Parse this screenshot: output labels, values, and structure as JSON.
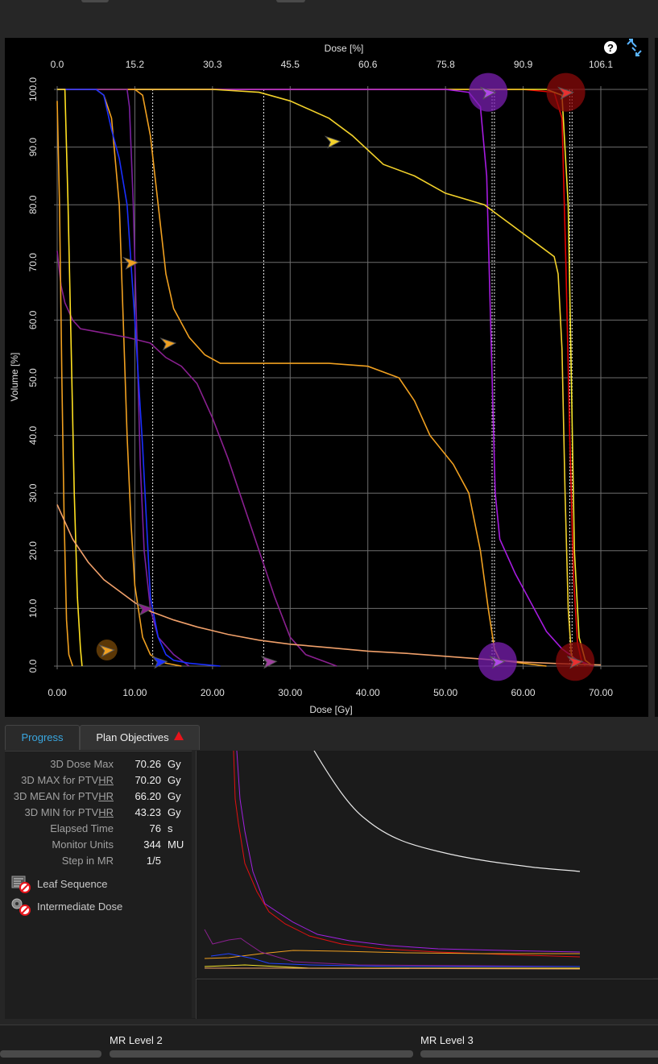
{
  "dvh": {
    "top_axis_title": "Dose [%]",
    "bottom_axis_title": "Dose [Gy]",
    "left_axis_title": "Volume [%]",
    "help_icon": "help-icon",
    "expand_icon": "expand-icon"
  },
  "chart_data": {
    "type": "line",
    "xlabel": "Dose [Gy]",
    "x2label": "Dose [%]",
    "ylabel": "Volume [%]",
    "xlim": [
      0,
      70
    ],
    "ylim": [
      0,
      100
    ],
    "x_ticks": [
      "0.00",
      "10.00",
      "20.00",
      "30.00",
      "40.00",
      "50.00",
      "60.00",
      "70.00"
    ],
    "x2_ticks": [
      "0.0",
      "15.2",
      "30.3",
      "45.5",
      "60.6",
      "75.8",
      "90.9",
      "106.1"
    ],
    "y_ticks": [
      "0.0",
      "10.0",
      "20.0",
      "30.0",
      "40.0",
      "50.0",
      "60.0",
      "70.0",
      "80.0",
      "90.0",
      "100.0"
    ],
    "grid": true,
    "series": [
      {
        "color": "#e60000",
        "values": [
          [
            0,
            100
          ],
          [
            60,
            100
          ],
          [
            64,
            99.5
          ],
          [
            65,
            95
          ],
          [
            65.5,
            70
          ],
          [
            66,
            40
          ],
          [
            66.5,
            15
          ],
          [
            67,
            4
          ],
          [
            67.5,
            1
          ],
          [
            68,
            0
          ]
        ]
      },
      {
        "color": "#f5e52a",
        "values": [
          [
            0,
            100
          ],
          [
            63,
            100
          ],
          [
            65,
            99
          ],
          [
            65.8,
            80
          ],
          [
            66.2,
            50
          ],
          [
            66.6,
            20
          ],
          [
            67.2,
            5
          ],
          [
            68,
            1
          ],
          [
            69,
            0
          ]
        ]
      },
      {
        "color": "#a61be0",
        "values": [
          [
            0,
            100
          ],
          [
            50,
            100
          ],
          [
            53,
            99.5
          ],
          [
            54.5,
            97
          ],
          [
            55.3,
            85
          ],
          [
            55.8,
            60
          ],
          [
            56.4,
            30
          ],
          [
            57,
            22
          ],
          [
            59,
            16
          ],
          [
            61,
            11
          ],
          [
            63,
            6
          ],
          [
            65,
            3
          ],
          [
            67,
            1
          ],
          [
            69,
            0
          ]
        ]
      },
      {
        "color": "#f2d12a",
        "values": [
          [
            0,
            100
          ],
          [
            20,
            100
          ],
          [
            26,
            99.5
          ],
          [
            30,
            98
          ],
          [
            35,
            95
          ],
          [
            38,
            92
          ],
          [
            42,
            87
          ],
          [
            46,
            85
          ],
          [
            50,
            82
          ],
          [
            55,
            80
          ],
          [
            57,
            78
          ],
          [
            60,
            75
          ],
          [
            62,
            73
          ],
          [
            64,
            71
          ],
          [
            64.5,
            68
          ],
          [
            65,
            55
          ],
          [
            65.4,
            30
          ],
          [
            65.8,
            10
          ],
          [
            66.2,
            2
          ],
          [
            67,
            0
          ]
        ]
      },
      {
        "color": "#f0a020",
        "values": [
          [
            0,
            100
          ],
          [
            10,
            100
          ],
          [
            11,
            99
          ],
          [
            12,
            92
          ],
          [
            13,
            80
          ],
          [
            14,
            68
          ],
          [
            15,
            62
          ],
          [
            17,
            57
          ],
          [
            19,
            54
          ],
          [
            21,
            52.5
          ],
          [
            25,
            52.5
          ],
          [
            35,
            52.5
          ],
          [
            40,
            52
          ],
          [
            44,
            50
          ],
          [
            46,
            46
          ],
          [
            48,
            40
          ],
          [
            51,
            35
          ],
          [
            53,
            30
          ],
          [
            54.5,
            20
          ],
          [
            55.5,
            10
          ],
          [
            56.3,
            3
          ],
          [
            57,
            1
          ],
          [
            60,
            0.5
          ],
          [
            63,
            0
          ]
        ]
      },
      {
        "color": "#f0a020",
        "values": [
          [
            0,
            100
          ],
          [
            5,
            100
          ],
          [
            6,
            99
          ],
          [
            7,
            95
          ],
          [
            8,
            80
          ],
          [
            8.5,
            60
          ],
          [
            9,
            40
          ],
          [
            9.5,
            25
          ],
          [
            10,
            14
          ],
          [
            11,
            5
          ],
          [
            12,
            2
          ],
          [
            13,
            1
          ],
          [
            14,
            0.5
          ],
          [
            16,
            0
          ]
        ]
      },
      {
        "color": "#8a2090",
        "values": [
          [
            0,
            72
          ],
          [
            0.5,
            66
          ],
          [
            1,
            63
          ],
          [
            2,
            60
          ],
          [
            3,
            58.5
          ],
          [
            5,
            58
          ],
          [
            7,
            57.5
          ],
          [
            9,
            57
          ],
          [
            12,
            56
          ],
          [
            14,
            53.5
          ],
          [
            16,
            52
          ],
          [
            18,
            49
          ],
          [
            20,
            43
          ],
          [
            22,
            36
          ],
          [
            24,
            28
          ],
          [
            26,
            20
          ],
          [
            28,
            12
          ],
          [
            30,
            5
          ],
          [
            32,
            2
          ],
          [
            35,
            0.5
          ],
          [
            36,
            0
          ]
        ]
      },
      {
        "color": "#7a20a0",
        "values": [
          [
            0,
            100
          ],
          [
            9,
            100
          ],
          [
            9.3,
            97
          ],
          [
            9.8,
            80
          ],
          [
            10.2,
            60
          ],
          [
            10.7,
            35
          ],
          [
            11.2,
            20
          ],
          [
            12,
            10
          ],
          [
            13,
            5
          ],
          [
            15,
            2
          ],
          [
            17,
            0
          ]
        ]
      },
      {
        "color": "#1a2fff",
        "values": [
          [
            0,
            100
          ],
          [
            5,
            100
          ],
          [
            6,
            99
          ],
          [
            7,
            93
          ],
          [
            8,
            88
          ],
          [
            9,
            80
          ],
          [
            10,
            60
          ],
          [
            11,
            38
          ],
          [
            11.5,
            25
          ],
          [
            12,
            12
          ],
          [
            13,
            5
          ],
          [
            14,
            2
          ],
          [
            15,
            1
          ],
          [
            17,
            0.5
          ],
          [
            21,
            0
          ]
        ]
      },
      {
        "color": "#ffe020",
        "values": [
          [
            0,
            100
          ],
          [
            1,
            100
          ],
          [
            1.4,
            80
          ],
          [
            1.8,
            55
          ],
          [
            2.2,
            30
          ],
          [
            2.6,
            12
          ],
          [
            3,
            3
          ],
          [
            3.2,
            0
          ]
        ]
      },
      {
        "color": "#f0a020",
        "values": [
          [
            0,
            98
          ],
          [
            0.3,
            80
          ],
          [
            0.6,
            50
          ],
          [
            0.9,
            25
          ],
          [
            1.2,
            8
          ],
          [
            1.5,
            2
          ],
          [
            2,
            0
          ]
        ]
      },
      {
        "color": "#f0a06a",
        "values": [
          [
            0,
            28
          ],
          [
            2,
            22
          ],
          [
            4,
            18
          ],
          [
            6,
            15
          ],
          [
            8,
            13
          ],
          [
            10,
            11
          ],
          [
            12,
            9.5
          ],
          [
            15,
            8
          ],
          [
            18,
            6.8
          ],
          [
            22,
            5.5
          ],
          [
            26,
            4.5
          ],
          [
            30,
            3.8
          ],
          [
            35,
            3.2
          ],
          [
            40,
            2.6
          ],
          [
            45,
            2.2
          ],
          [
            50,
            1.7
          ],
          [
            55,
            1.2
          ],
          [
            60,
            0.7
          ],
          [
            65,
            0.4
          ],
          [
            70,
            0.2
          ]
        ]
      }
    ],
    "markers": [
      {
        "x": 55.5,
        "y": 99.5,
        "color": "#b048e8",
        "ring": "#7a1fb0"
      },
      {
        "x": 65.5,
        "y": 99.5,
        "color": "#e83030",
        "ring": "#8a0a0a"
      },
      {
        "x": 35.5,
        "y": 91,
        "color": "#f2d12a",
        "ring": null
      },
      {
        "x": 9.5,
        "y": 70,
        "color": "#f0a020",
        "ring": null
      },
      {
        "x": 14.3,
        "y": 56,
        "color": "#f0a020",
        "ring": null
      },
      {
        "x": 11.3,
        "y": 10,
        "color": "#8a2090",
        "ring": null
      },
      {
        "x": 6.4,
        "y": 2.8,
        "color": "#f0a020",
        "ring": "#7a4a08"
      },
      {
        "x": 13.2,
        "y": 0.8,
        "color": "#1a2fff",
        "ring": null
      },
      {
        "x": 27.3,
        "y": 0.8,
        "color": "#a040a0",
        "ring": null
      },
      {
        "x": 56.7,
        "y": 0.8,
        "color": "#b048e8",
        "ring": "#7a1fb0"
      },
      {
        "x": 66.7,
        "y": 0.8,
        "color": "#e83030",
        "ring": "#8a0a0a"
      }
    ],
    "dotted_lines_x": [
      12.3,
      26.6,
      56,
      56.3,
      66,
      66.3
    ]
  },
  "tabs": {
    "progress": "Progress",
    "plan_objectives": "Plan Objectives"
  },
  "stats": [
    {
      "label": "3D Dose Max",
      "value": "70.26",
      "unit": "Gy"
    },
    {
      "label": "3D MAX for PTVHR",
      "value": "70.20",
      "unit": "Gy"
    },
    {
      "label": "3D MEAN for PTVHR",
      "value": "66.20",
      "unit": "Gy"
    },
    {
      "label": "3D MIN for PTVHR",
      "value": "43.23",
      "unit": "Gy"
    },
    {
      "label": "Elapsed Time",
      "value": "76",
      "unit": "s"
    },
    {
      "label": "Monitor Units",
      "value": "344",
      "unit": "MU"
    },
    {
      "label": "Step in MR",
      "value": "1/5",
      "unit": ""
    }
  ],
  "status": {
    "leaf_sequence": "Leaf Sequence",
    "intermediate_dose": "Intermediate Dose"
  },
  "mr": {
    "level2": "MR Level 2",
    "level3": "MR Level 3"
  }
}
